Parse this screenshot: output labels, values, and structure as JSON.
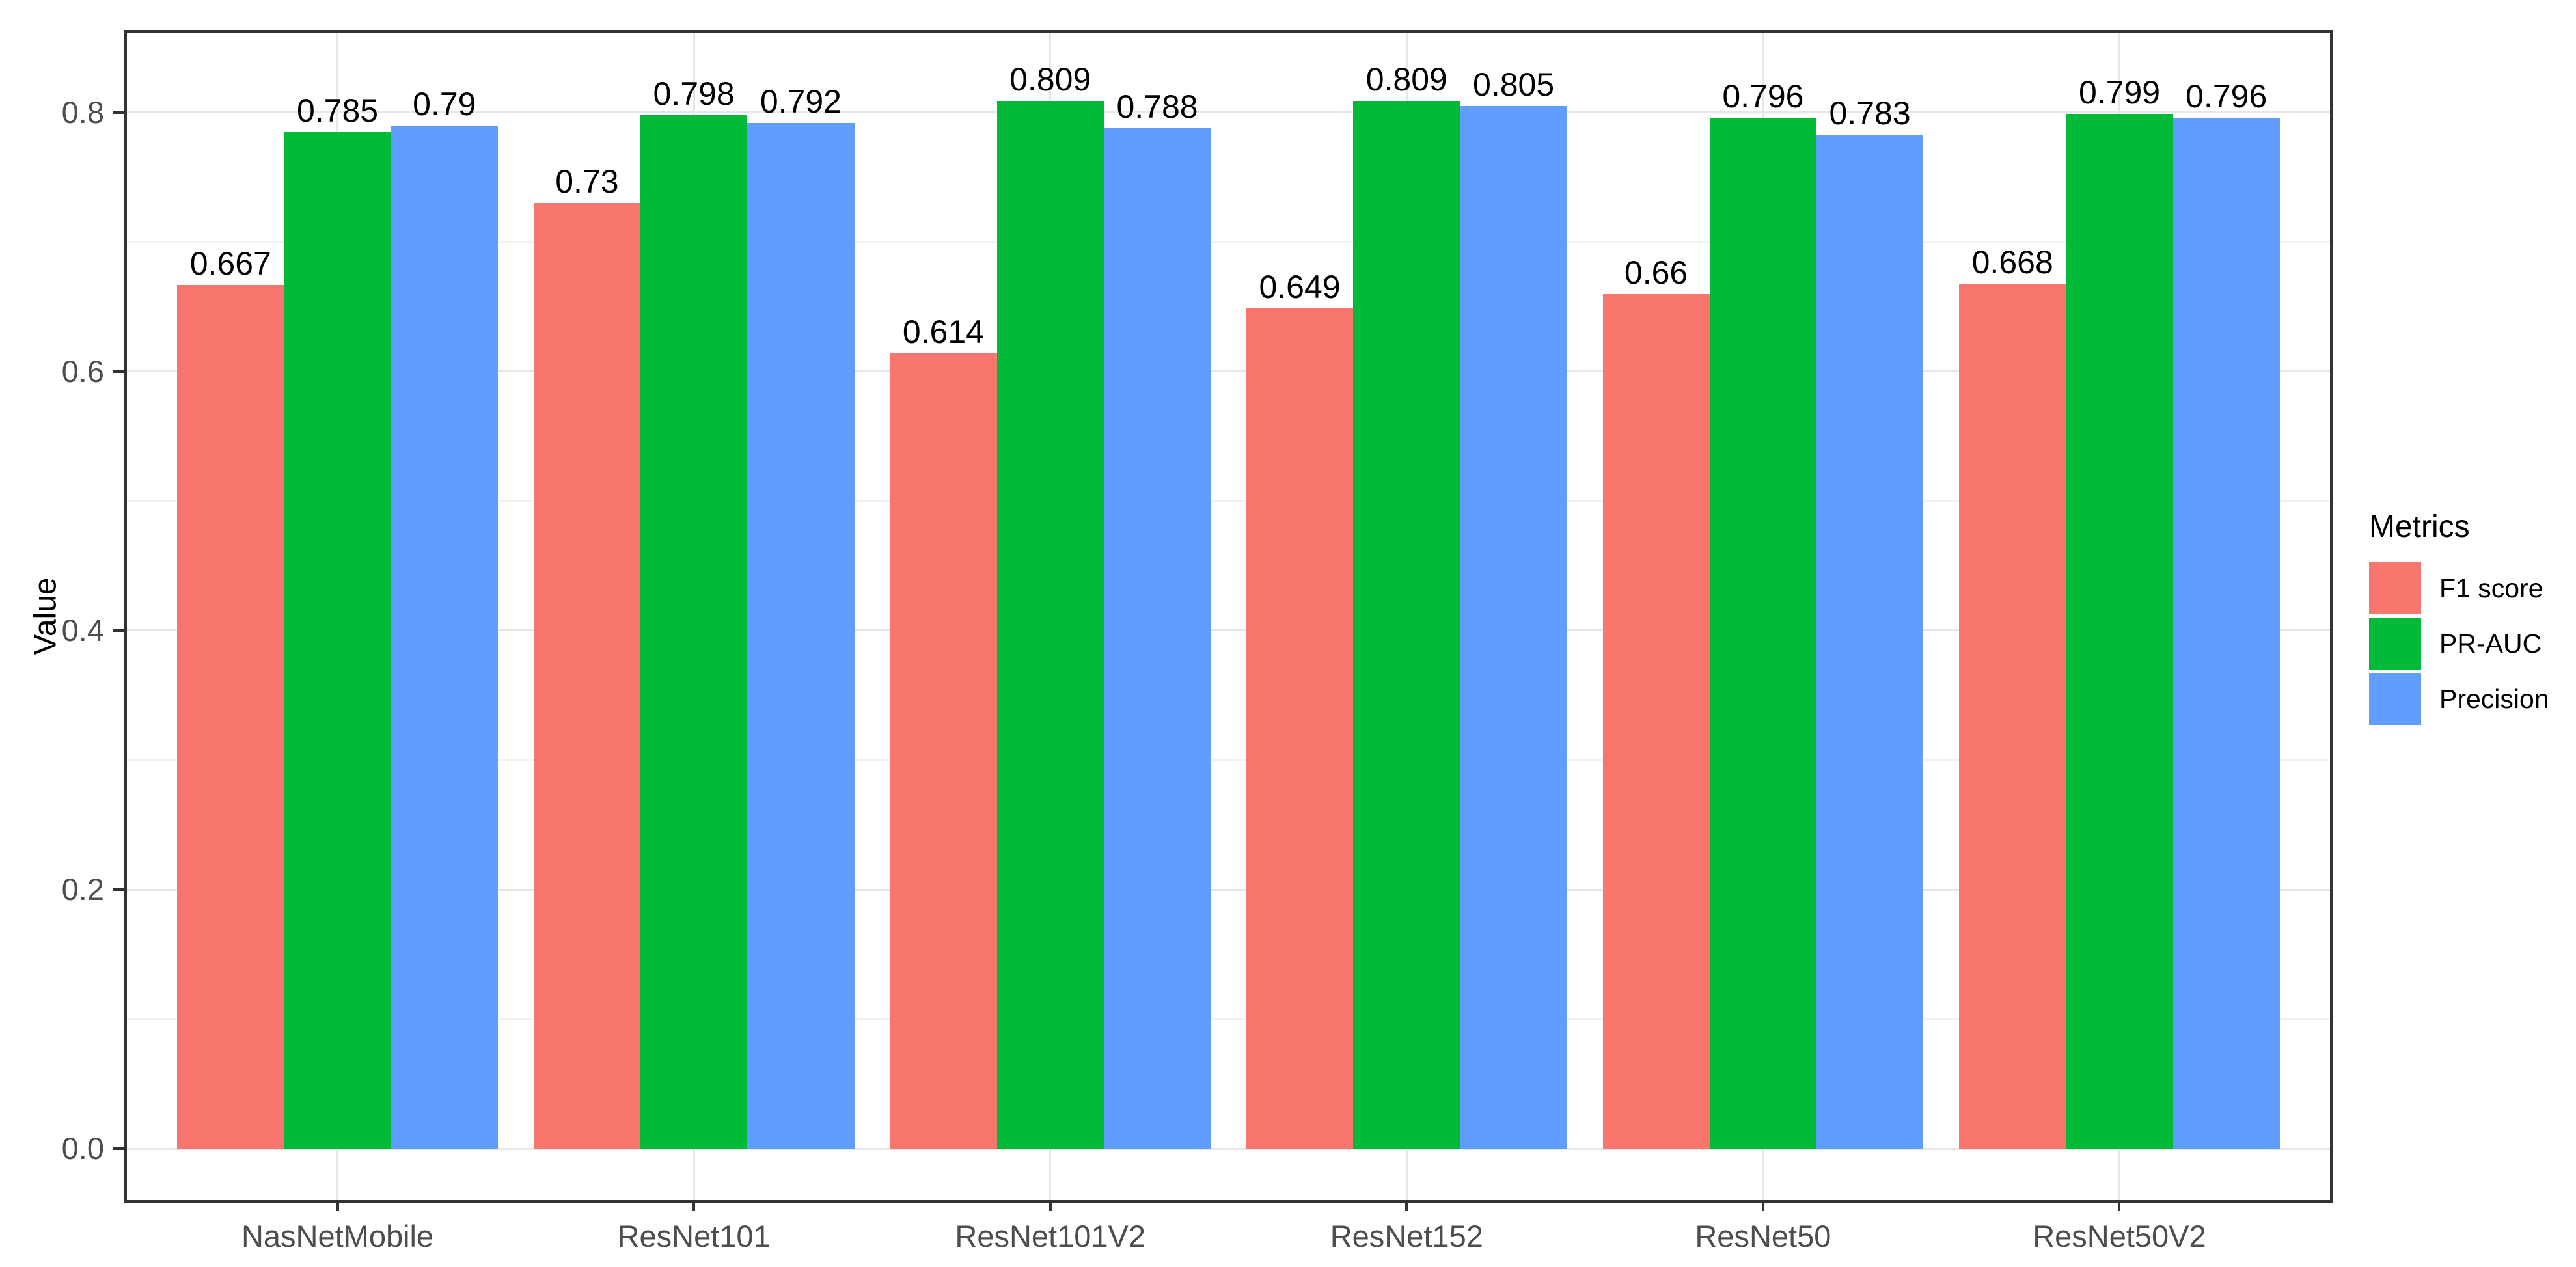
{
  "chart_data": {
    "type": "bar",
    "title": "",
    "xlabel": "",
    "ylabel": "Value",
    "legend_title": "Metrics",
    "legend_position": "right",
    "grid": true,
    "categories": [
      "NasNetMobile",
      "ResNet101",
      "ResNet101V2",
      "ResNet152",
      "ResNet50",
      "ResNet50V2"
    ],
    "series": [
      {
        "name": "F1 score",
        "color": "#F8766D",
        "values": [
          0.667,
          0.73,
          0.614,
          0.649,
          0.66,
          0.668
        ],
        "labels": [
          "0.667",
          "0.73",
          "0.614",
          "0.649",
          "0.66",
          "0.668"
        ]
      },
      {
        "name": "PR-AUC",
        "color": "#00BA38",
        "values": [
          0.785,
          0.798,
          0.809,
          0.809,
          0.796,
          0.799
        ],
        "labels": [
          "0.785",
          "0.798",
          "0.809",
          "0.809",
          "0.796",
          "0.799"
        ]
      },
      {
        "name": "Precision",
        "color": "#619CFF",
        "values": [
          0.79,
          0.792,
          0.788,
          0.805,
          0.783,
          0.796
        ],
        "labels": [
          "0.79",
          "0.792",
          "0.788",
          "0.805",
          "0.783",
          "0.796"
        ]
      }
    ],
    "yticks": {
      "values": [
        0,
        0.2,
        0.4,
        0.6,
        0.8
      ],
      "labels": [
        "0.0",
        "0.2",
        "0.4",
        "0.6",
        "0.8"
      ]
    },
    "minor_yticks": [
      0.1,
      0.3,
      0.5,
      0.7
    ],
    "ylim": [
      -0.0422,
      0.8638
    ]
  },
  "colors": {
    "background": "#FFFFFF",
    "panel_border": "#333333",
    "grid_major": "#E7E7E7",
    "grid_minor": "#F2F2F2",
    "tick_mark": "#333333",
    "axis_text": "#4D4D4D",
    "label_text": "#000000"
  }
}
